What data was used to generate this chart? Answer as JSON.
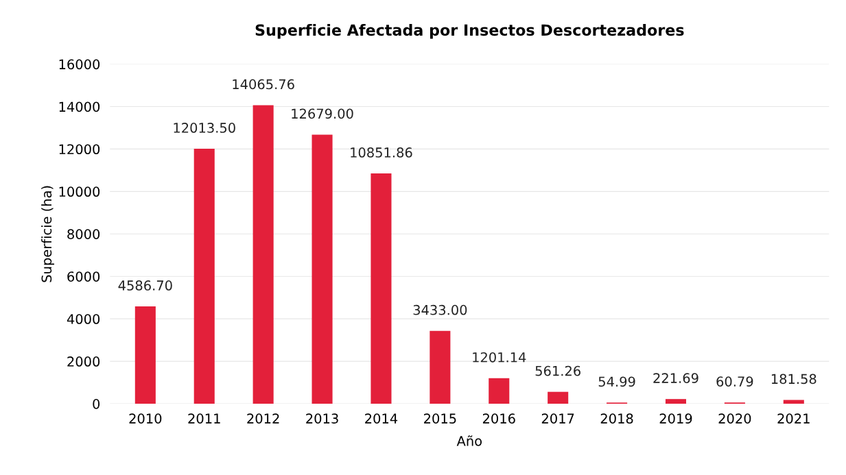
{
  "chart_data": {
    "type": "bar",
    "title": "Superficie Afectada por Insectos Descortezadores",
    "xlabel": "Año",
    "ylabel": "Superficie (ha)",
    "categories": [
      "2010",
      "2011",
      "2012",
      "2013",
      "2014",
      "2015",
      "2016",
      "2017",
      "2018",
      "2019",
      "2020",
      "2021"
    ],
    "values": [
      4586.7,
      12013.5,
      14065.76,
      12679.0,
      10851.86,
      3433.0,
      1201.14,
      561.26,
      54.99,
      221.69,
      60.79,
      181.58
    ],
    "value_labels": [
      "4586.70",
      "12013.50",
      "14065.76",
      "12679.00",
      "10851.86",
      "3433.00",
      "1201.14",
      "561.26",
      "54.99",
      "221.69",
      "60.79",
      "181.58"
    ],
    "color": "#e3203a",
    "ylim": [
      0,
      16000
    ],
    "yticks": [
      0,
      2000,
      4000,
      6000,
      8000,
      10000,
      12000,
      14000,
      16000
    ],
    "grid": "y"
  }
}
